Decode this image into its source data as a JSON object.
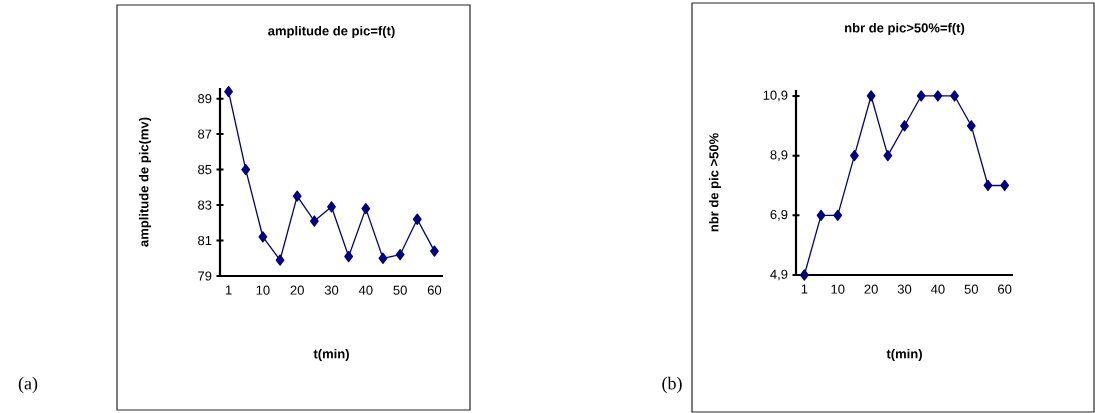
{
  "chart_data": [
    {
      "type": "line",
      "title": "amplitude de pic=f(t)",
      "xlabel": "t(min)",
      "ylabel": "amplitude de pic(mv)",
      "annotations": [
        "(a)"
      ],
      "categories": [
        "1",
        null,
        "10",
        null,
        "20",
        null,
        "30",
        null,
        "40",
        null,
        "50",
        null,
        "60"
      ],
      "values": [
        89.4,
        85.0,
        81.2,
        79.9,
        83.5,
        82.1,
        82.9,
        80.1,
        82.8,
        80.0,
        80.2,
        82.2,
        80.4
      ],
      "color": "#000080",
      "marker": "diamond",
      "ylim": [
        79,
        89.6
      ],
      "yticks": [
        79,
        81,
        83,
        85,
        87,
        89
      ]
    },
    {
      "type": "line",
      "title": "nbr de pic>50%=f(t)",
      "xlabel": "t(min)",
      "ylabel": "nbr de pic >50%",
      "annotations": [
        "(b)"
      ],
      "categories": [
        "1",
        null,
        "10",
        null,
        "20",
        null,
        "30",
        null,
        "40",
        null,
        "50",
        null,
        "60"
      ],
      "values": [
        4.9,
        6.9,
        6.9,
        8.9,
        10.9,
        8.9,
        9.9,
        10.9,
        10.9,
        10.9,
        9.9,
        7.9,
        7.9
      ],
      "color": "#000080",
      "marker": "diamond",
      "ylim": [
        4.9,
        11.1
      ],
      "yticks": [
        {
          "value": 4.9,
          "label": "4,9"
        },
        {
          "value": 6.9,
          "label": "6,9"
        },
        {
          "value": 8.9,
          "label": "8,9"
        },
        {
          "value": 10.9,
          "label": "10,9"
        }
      ]
    }
  ]
}
